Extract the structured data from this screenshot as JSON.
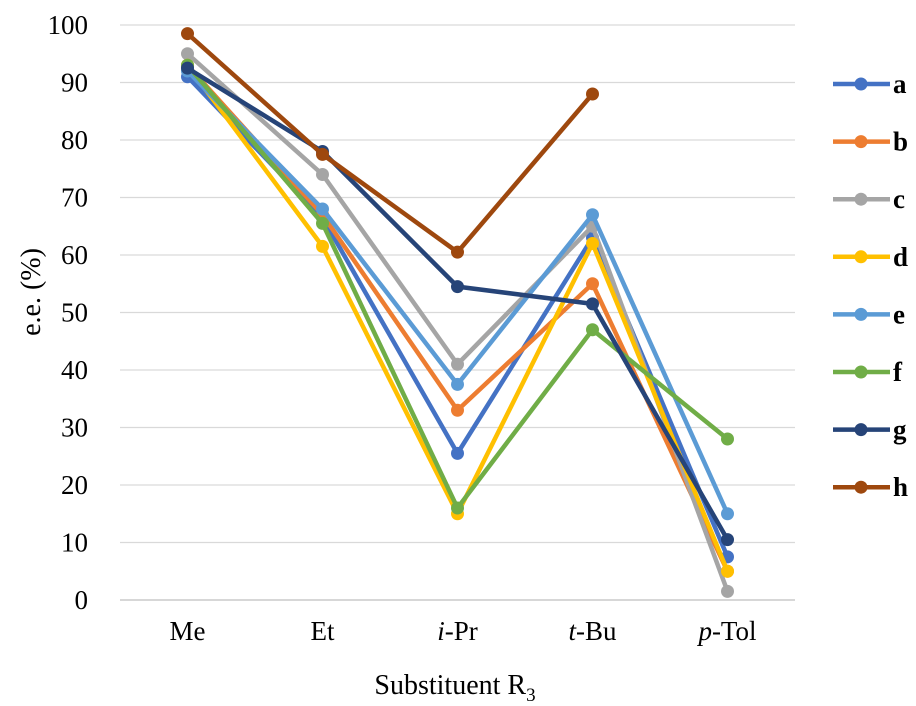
{
  "chart_data": {
    "type": "line",
    "title": "",
    "xlabel": "Substituent R",
    "xlabel_sub": "3",
    "ylabel": "e.e. (%)",
    "ylim": [
      0,
      100
    ],
    "yticks": [
      0,
      10,
      20,
      30,
      40,
      50,
      60,
      70,
      80,
      90,
      100
    ],
    "categories": [
      {
        "italic": "",
        "rest": "Me"
      },
      {
        "italic": "",
        "rest": "Et"
      },
      {
        "italic": "i",
        "rest": "-Pr"
      },
      {
        "italic": "t",
        "rest": "-Bu"
      },
      {
        "italic": "p",
        "rest": "-Tol"
      }
    ],
    "grid": true,
    "legend_position": "right",
    "series": [
      {
        "name": "a",
        "color": "#4472C4",
        "values": [
          91,
          66.5,
          25.5,
          63,
          7.5
        ]
      },
      {
        "name": "b",
        "color": "#ED7D31",
        "values": [
          93,
          67,
          33,
          55,
          5
        ]
      },
      {
        "name": "c",
        "color": "#A5A5A5",
        "values": [
          95,
          74,
          41,
          65,
          1.5
        ]
      },
      {
        "name": "d",
        "color": "#FFC000",
        "values": [
          93,
          61.5,
          15,
          62,
          5
        ]
      },
      {
        "name": "e",
        "color": "#5B9BD5",
        "values": [
          92,
          68,
          37.5,
          67,
          15
        ]
      },
      {
        "name": "f",
        "color": "#70AD47",
        "values": [
          93,
          65.5,
          16,
          47,
          28
        ]
      },
      {
        "name": "g",
        "color": "#264478",
        "values": [
          92.5,
          78,
          54.5,
          51.5,
          10.5
        ]
      },
      {
        "name": "h",
        "color": "#9E480E",
        "values": [
          98.5,
          77.5,
          60.5,
          88,
          null
        ]
      }
    ]
  }
}
